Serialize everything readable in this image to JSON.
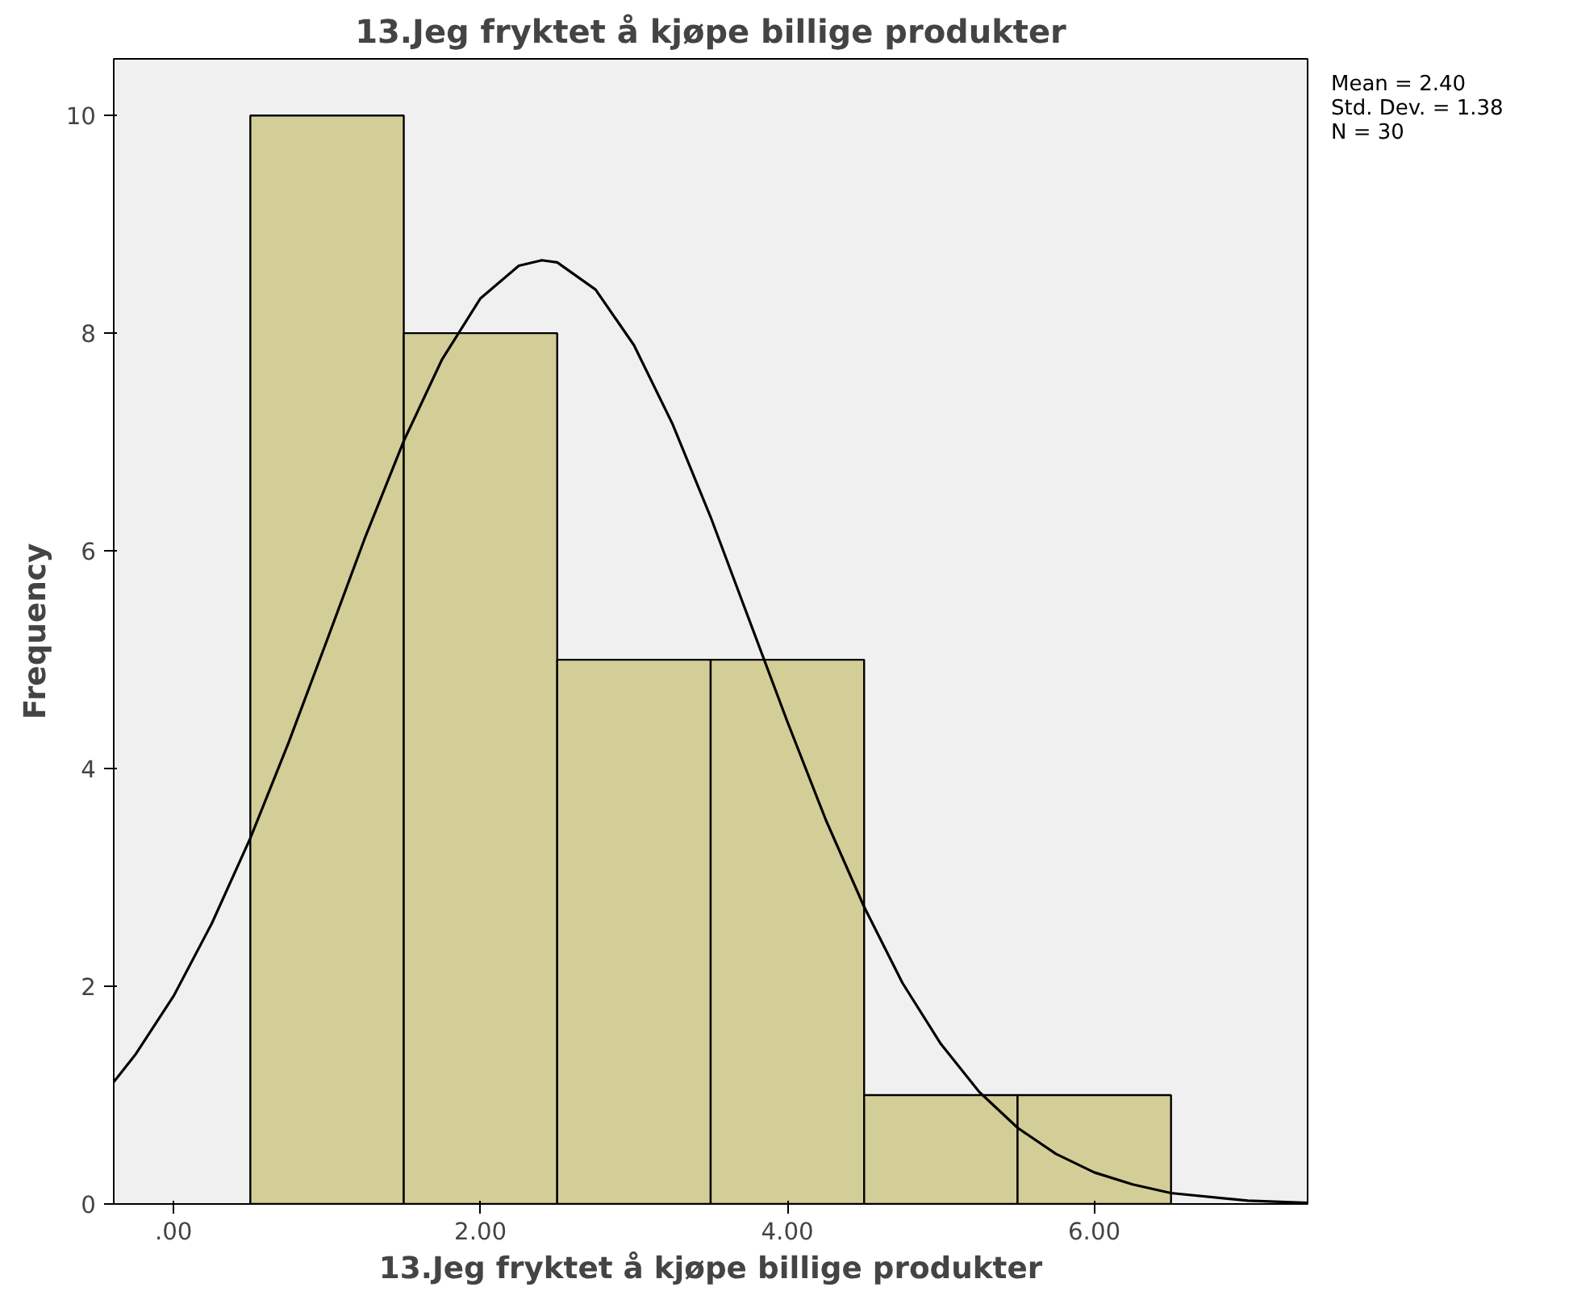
{
  "chart_data": {
    "type": "histogram",
    "title": "13.Jeg fryktet å kjøpe billige produkter",
    "xlabel": "13.Jeg fryktet å kjøpe billige produkter",
    "ylabel": "Frequency",
    "bins": [
      0.5,
      1.5,
      2.5,
      3.5,
      4.5,
      5.5,
      6.5
    ],
    "values": [
      10,
      8,
      5,
      5,
      1,
      1
    ],
    "color": "#d3ce97",
    "series": [
      {
        "type": "line",
        "color": "#000000",
        "x": [
          -0.39,
          -0.25,
          0,
          0.25,
          0.5,
          0.75,
          1,
          1.25,
          1.5,
          1.75,
          2,
          2.25,
          2.4,
          2.5,
          2.75,
          3,
          3.25,
          3.5,
          3.75,
          4,
          4.25,
          4.5,
          4.75,
          5,
          5.25,
          5.5,
          5.75,
          6,
          6.25,
          6.5,
          7,
          7.39
        ],
        "values": [
          1.12,
          1.37,
          1.91,
          2.58,
          3.36,
          4.24,
          5.18,
          6.13,
          7.01,
          7.76,
          8.32,
          8.62,
          8.67,
          8.65,
          8.4,
          7.89,
          7.17,
          6.31,
          5.37,
          4.43,
          3.53,
          2.73,
          2.03,
          1.47,
          1.03,
          0.7,
          0.46,
          0.29,
          0.18,
          0.1,
          0.03,
          0.01
        ]
      }
    ],
    "xlim": [
      -0.39,
      7.39
    ],
    "ylim": [
      0,
      10.52
    ],
    "xticks": [
      {
        "value": 0,
        "label": ".00"
      },
      {
        "value": 2,
        "label": "2.00"
      },
      {
        "value": 4,
        "label": "4.00"
      },
      {
        "value": 6,
        "label": "6.00"
      }
    ],
    "yticks": [
      0,
      2,
      4,
      6,
      8,
      10
    ],
    "grid": false,
    "annotations": [
      "Mean = 2.40",
      "Std. Dev. = 1.38",
      "N = 30"
    ]
  }
}
